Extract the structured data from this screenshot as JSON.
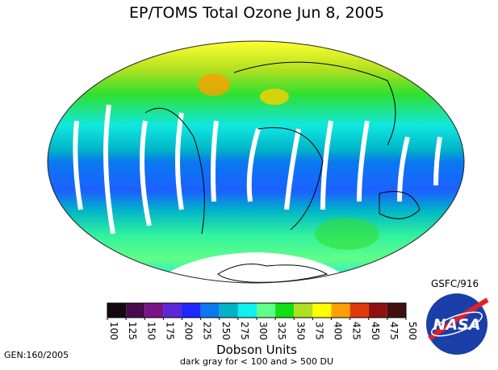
{
  "title": "EP/TOMS Total Ozone Jun  8, 2005",
  "credit": "GSFC/916",
  "generation": "GEN:160/2005",
  "logo": "NASA",
  "colorbar": {
    "label": "Dobson Units",
    "note": "dark gray for < 100 and > 500 DU",
    "ticks": [
      100,
      125,
      150,
      175,
      200,
      225,
      250,
      275,
      300,
      325,
      350,
      375,
      400,
      425,
      450,
      475,
      500
    ],
    "colors": [
      "#140812",
      "#4a0a4e",
      "#7a1488",
      "#5a28d8",
      "#1c28ff",
      "#0a78f0",
      "#00b4c8",
      "#10f0f0",
      "#60ff88",
      "#10e010",
      "#b0e020",
      "#ffff00",
      "#ffa000",
      "#e03808",
      "#901010",
      "#401010"
    ]
  }
}
